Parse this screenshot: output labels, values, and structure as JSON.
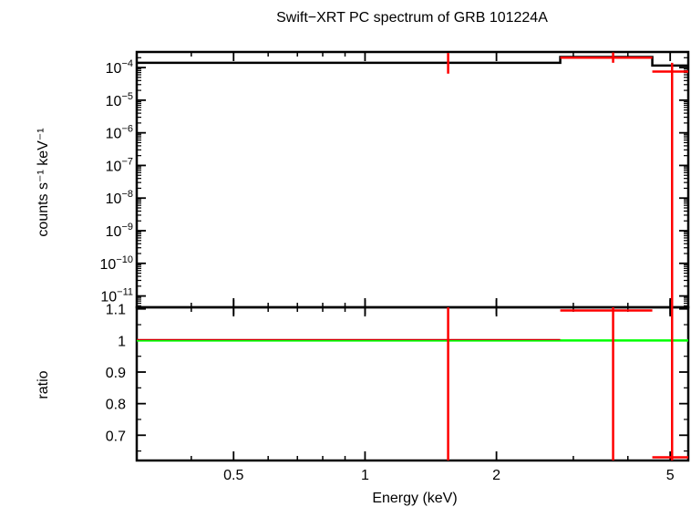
{
  "chart_data": [
    {
      "type": "line",
      "panel": "spectrum",
      "title": "Swift−XRT PC spectrum of GRB 101224A",
      "xlabel": "",
      "ylabel": "counts s⁻¹ keV⁻¹",
      "xscale": "log",
      "yscale": "log",
      "xlim": [
        0.3,
        5.5
      ],
      "ylim": [
        4.5e-12,
        0.0003
      ],
      "y_ticks": [
        {
          "mant": "10",
          "exp": "−4",
          "value": 0.0001
        },
        {
          "mant": "10",
          "exp": "−5",
          "value": 1e-05
        },
        {
          "mant": "10",
          "exp": "−6",
          "value": 1e-06
        },
        {
          "mant": "10",
          "exp": "−7",
          "value": 1e-07
        },
        {
          "mant": "10",
          "exp": "−8",
          "value": 1e-08
        },
        {
          "mant": "10",
          "exp": "−9",
          "value": 1e-09
        },
        {
          "mant": "10",
          "exp": "−10",
          "value": 1e-10
        },
        {
          "mant": "10",
          "exp": "−11",
          "value": 1e-11
        }
      ],
      "model": {
        "color": "#000000",
        "steps": [
          {
            "x0": 0.3,
            "x1": 2.8,
            "y": 0.00014
          },
          {
            "x0": 2.8,
            "x1": 4.55,
            "y": 0.00021
          },
          {
            "x0": 4.55,
            "x1": 5.5,
            "y": 0.000115
          }
        ]
      },
      "data": {
        "color": "#ff0000",
        "points": [
          {
            "x": 1.55,
            "y": 0.00014,
            "xerr": [
              1.55,
              1.55
            ],
            "yerr": [
              6.5e-05,
              0.00028
            ]
          },
          {
            "x": 3.7,
            "y": 0.0002,
            "xerr": [
              2.8,
              4.55
            ],
            "yerr": [
              0.00014,
              0.00029
            ]
          },
          {
            "x": 5.05,
            "y": 7.5e-05,
            "xerr": [
              4.55,
              5.5
            ],
            "yerr": [
              4.5e-12,
              0.00014
            ]
          }
        ]
      }
    },
    {
      "type": "line",
      "panel": "ratio",
      "xlabel": "Energy (keV)",
      "ylabel": "ratio",
      "xscale": "log",
      "xlim": [
        0.3,
        5.5
      ],
      "ylim": [
        0.62,
        1.105
      ],
      "x_ticks": [
        {
          "label": "0.5",
          "value": 0.5
        },
        {
          "label": "1",
          "value": 1
        },
        {
          "label": "2",
          "value": 2
        },
        {
          "label": "5",
          "value": 5
        }
      ],
      "y_ticks": [
        {
          "label": "1.1",
          "value": 1.1
        },
        {
          "label": "1",
          "value": 1.0
        },
        {
          "label": "0.9",
          "value": 0.9
        },
        {
          "label": "0.8",
          "value": 0.8
        },
        {
          "label": "0.7",
          "value": 0.7
        }
      ],
      "reference_line": {
        "y": 1.0,
        "color": "#00ff00"
      },
      "data": {
        "color": "#ff0000",
        "points": [
          {
            "x": 1.55,
            "y": 1.0,
            "xerr": [
              0.3,
              2.8
            ],
            "yerr": [
              0.62,
              1.105
            ]
          },
          {
            "x": 3.7,
            "y": 1.095,
            "xerr": [
              2.8,
              4.55
            ],
            "yerr": [
              0.62,
              1.105
            ]
          },
          {
            "x": 5.05,
            "y": 0.63,
            "xerr": [
              4.55,
              5.5
            ],
            "yerr": [
              0.62,
              1.105
            ]
          }
        ]
      }
    }
  ]
}
